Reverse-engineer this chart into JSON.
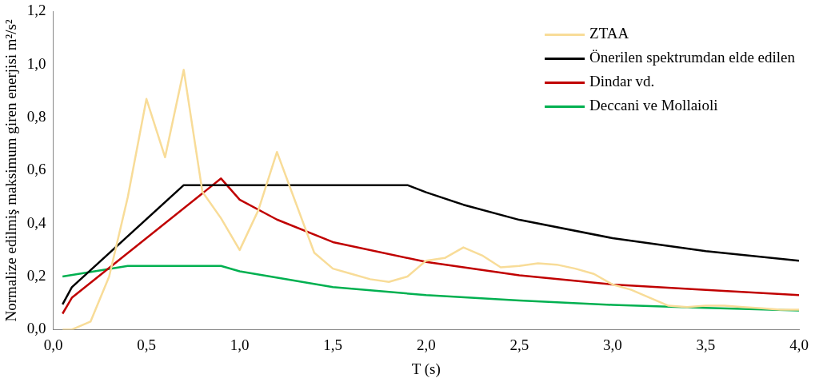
{
  "chart_data": {
    "type": "line",
    "xlabel": "T (s)",
    "ylabel": "Normalize edilmiş maksimum giren enerjisi m²/s²",
    "xlim": [
      0,
      4
    ],
    "ylim": [
      0,
      1.2
    ],
    "xticks": [
      {
        "value": 0,
        "label": "0,0"
      },
      {
        "value": 0.5,
        "label": "0,5"
      },
      {
        "value": 1,
        "label": "1,0"
      },
      {
        "value": 1.5,
        "label": "1,5"
      },
      {
        "value": 2,
        "label": "2,0"
      },
      {
        "value": 2.5,
        "label": "2,5"
      },
      {
        "value": 3,
        "label": "3,0"
      },
      {
        "value": 3.5,
        "label": "3,5"
      },
      {
        "value": 4,
        "label": "4,0"
      }
    ],
    "yticks": [
      {
        "value": 0,
        "label": "0,0"
      },
      {
        "value": 0.2,
        "label": "0,2"
      },
      {
        "value": 0.4,
        "label": "0,4"
      },
      {
        "value": 0.6,
        "label": "0,6"
      },
      {
        "value": 0.8,
        "label": "0,8"
      },
      {
        "value": 1,
        "label": "1,0"
      },
      {
        "value": 1.2,
        "label": "1,2"
      }
    ],
    "grid": false,
    "legend": "top right",
    "marker": "none",
    "line_style": "solid",
    "series": [
      {
        "name": "ZTAA",
        "color": "#f8dc98",
        "x": [
          0.05,
          0.1,
          0.2,
          0.3,
          0.4,
          0.5,
          0.6,
          0.7,
          0.8,
          0.9,
          1.0,
          1.1,
          1.2,
          1.3,
          1.4,
          1.5,
          1.6,
          1.7,
          1.8,
          1.9,
          2.0,
          2.1,
          2.2,
          2.3,
          2.4,
          2.5,
          2.6,
          2.7,
          2.8,
          2.9,
          3.0,
          3.1,
          3.2,
          3.3,
          3.4,
          3.5,
          3.6,
          3.7,
          3.8,
          3.9,
          4.0
        ],
        "values": [
          0.0,
          0.0,
          0.03,
          0.2,
          0.5,
          0.87,
          0.65,
          0.98,
          0.52,
          0.42,
          0.3,
          0.45,
          0.67,
          0.48,
          0.29,
          0.23,
          0.21,
          0.19,
          0.18,
          0.2,
          0.26,
          0.27,
          0.31,
          0.28,
          0.235,
          0.24,
          0.25,
          0.245,
          0.23,
          0.21,
          0.17,
          0.15,
          0.12,
          0.09,
          0.085,
          0.09,
          0.09,
          0.085,
          0.08,
          0.075,
          0.075
        ]
      },
      {
        "name": "Önerilen spektrumdan elde edilen",
        "color": "#000000",
        "x": [
          0.05,
          0.1,
          0.7,
          1.9,
          2.0,
          2.2,
          2.5,
          3.0,
          3.5,
          4.0
        ],
        "values": [
          0.095,
          0.16,
          0.545,
          0.545,
          0.518,
          0.471,
          0.414,
          0.345,
          0.296,
          0.26
        ]
      },
      {
        "name": "Dindar vd.",
        "color": "#c00000",
        "x": [
          0.05,
          0.1,
          0.9,
          1.0,
          1.2,
          1.5,
          2.0,
          2.5,
          3.0,
          3.5,
          4.0
        ],
        "values": [
          0.06,
          0.12,
          0.57,
          0.49,
          0.415,
          0.33,
          0.255,
          0.205,
          0.17,
          0.15,
          0.13
        ]
      },
      {
        "name": "Deccani ve Mollaioli",
        "color": "#00b050",
        "x": [
          0.05,
          0.4,
          0.9,
          1.0,
          1.5,
          2.0,
          2.5,
          3.0,
          3.5,
          4.0
        ],
        "values": [
          0.2,
          0.24,
          0.24,
          0.22,
          0.16,
          0.13,
          0.11,
          0.093,
          0.082,
          0.072
        ]
      }
    ]
  }
}
